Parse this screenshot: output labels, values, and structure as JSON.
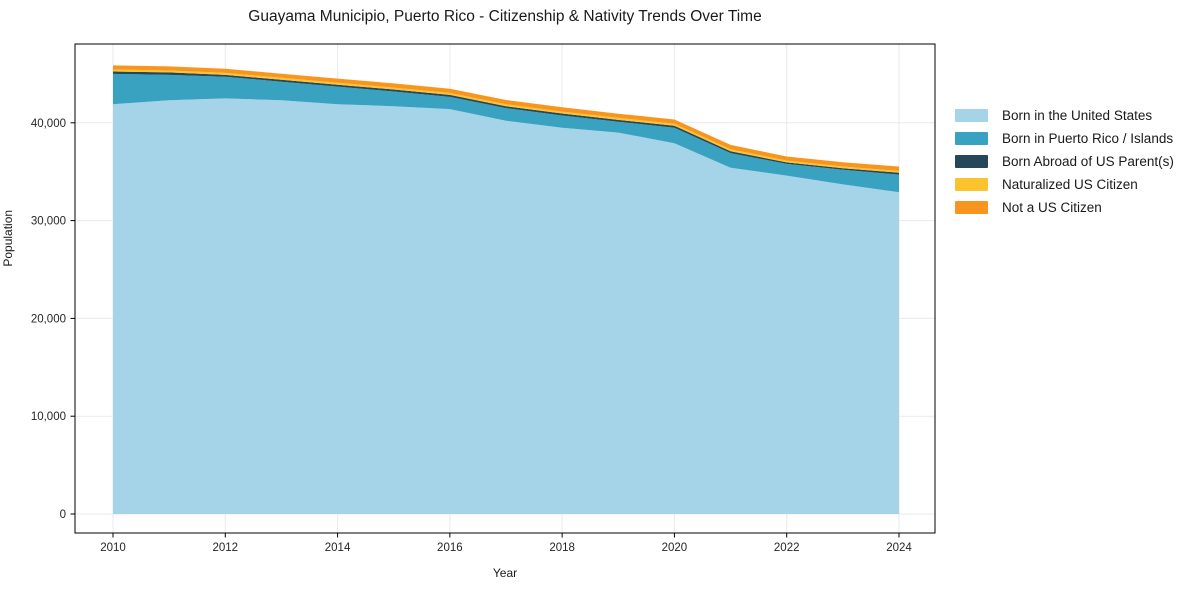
{
  "chart_data": {
    "type": "area",
    "stacked": true,
    "title": "Guayama Municipio, Puerto Rico - Citizenship & Nativity Trends Over Time",
    "xlabel": "Year",
    "ylabel": "Population",
    "x": [
      2010,
      2011,
      2012,
      2013,
      2014,
      2015,
      2016,
      2017,
      2018,
      2019,
      2020,
      2021,
      2022,
      2023,
      2024
    ],
    "series": [
      {
        "name": "Born in the United States",
        "color": "#a5d3e8",
        "values": [
          41900,
          42300,
          42500,
          42300,
          41900,
          41700,
          41400,
          40200,
          39500,
          39000,
          37900,
          35400,
          34600,
          33700,
          32900
        ]
      },
      {
        "name": "Born in Puerto Rico / Islands",
        "color": "#3aa2c1",
        "values": [
          3100,
          2600,
          2200,
          1900,
          1800,
          1500,
          1250,
          1300,
          1250,
          1100,
          1600,
          1500,
          1200,
          1500,
          1800
        ]
      },
      {
        "name": "Born Abroad of US Parent(s)",
        "color": "#26475a",
        "values": [
          250,
          250,
          200,
          200,
          200,
          200,
          200,
          200,
          200,
          200,
          200,
          200,
          150,
          150,
          200
        ]
      },
      {
        "name": "Naturalized US Citizen",
        "color": "#fbc32d",
        "values": [
          200,
          200,
          200,
          200,
          200,
          200,
          200,
          200,
          200,
          200,
          200,
          200,
          180,
          180,
          180
        ]
      },
      {
        "name": "Not a US Citizen",
        "color": "#f8951f",
        "values": [
          420,
          420,
          420,
          420,
          420,
          430,
          430,
          430,
          430,
          430,
          440,
          440,
          420,
          430,
          450
        ]
      }
    ],
    "x_tick_labels": [
      "2010",
      "2012",
      "2014",
      "2016",
      "2018",
      "2020",
      "2022",
      "2024"
    ],
    "x_tick_values": [
      2010,
      2012,
      2014,
      2016,
      2018,
      2020,
      2022,
      2024
    ],
    "y_tick_labels": [
      "0",
      "10,000",
      "20,000",
      "30,000",
      "40,000"
    ],
    "y_tick_values": [
      0,
      10000,
      20000,
      30000,
      40000
    ],
    "ylim": [
      -2000,
      48000
    ],
    "grid": true,
    "grid_color": "#e9e9e9",
    "spine_color": "#000000",
    "background_color": "#ffffff",
    "legend_position": "right-outside"
  }
}
